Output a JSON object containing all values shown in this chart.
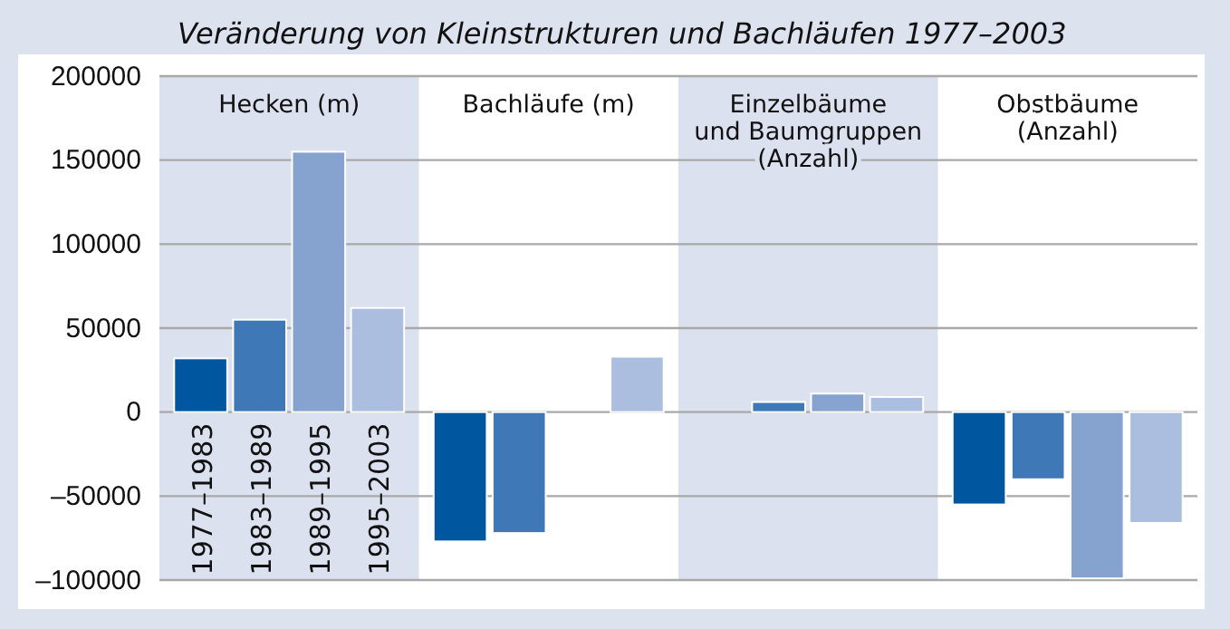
{
  "chart_data": {
    "type": "bar",
    "title": "Veränderung von Kleinstrukturen und Bachläufen 1977–2003",
    "categories": [
      "Hecken (m)",
      "Bachläufe (m)",
      "Einzelbäume\nund Baumgruppen\n(Anzahl)",
      "Obstbäume\n(Anzahl)"
    ],
    "series": [
      {
        "name": "1977–1983",
        "color": "#0057a0",
        "values": [
          32000,
          -77000,
          0,
          -55000
        ]
      },
      {
        "name": "1983–1989",
        "color": "#3f78b6",
        "values": [
          55000,
          -72000,
          6000,
          -40000
        ]
      },
      {
        "name": "1989–1995",
        "color": "#86a3cf",
        "values": [
          155000,
          0,
          11000,
          -99000
        ]
      },
      {
        "name": "1995–2003",
        "color": "#abbedf",
        "values": [
          62000,
          33000,
          9000,
          -66000
        ]
      }
    ],
    "ylim": [
      -100000,
      200000
    ],
    "yticks": [
      {
        "value": -100000,
        "label": "–100000"
      },
      {
        "value": -50000,
        "label": "–50000"
      },
      0,
      50000,
      100000,
      150000,
      200000
    ],
    "grid": "y",
    "legend": false,
    "bands": [
      {
        "axis": "x",
        "from": "Hecken (m)",
        "to": "Hecken (m)",
        "color": "#dce1ef"
      },
      {
        "axis": "x",
        "from": "Einzelbäume\nund Baumgruppen\n(Anzahl)",
        "to": "Einzelbäume\nund Baumgruppen\n(Anzahl)",
        "color": "#dce1ef"
      }
    ]
  }
}
